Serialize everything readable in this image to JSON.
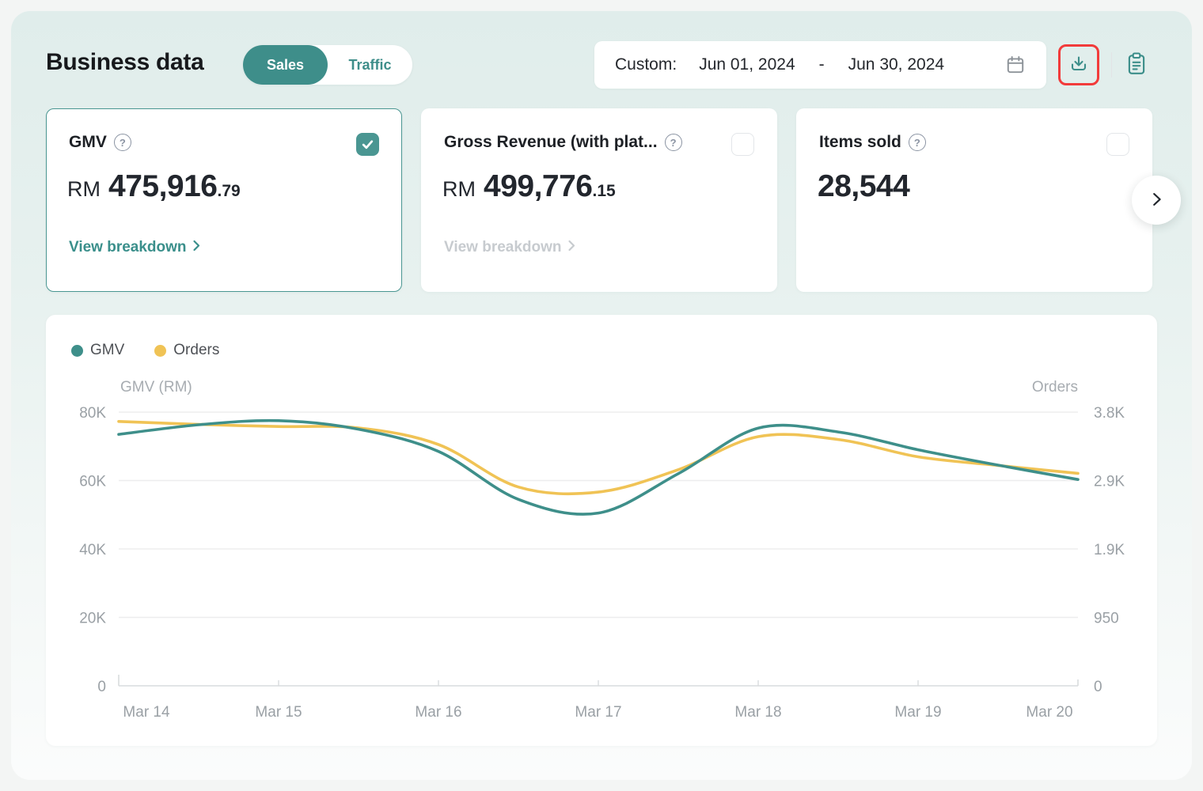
{
  "header": {
    "title": "Business data",
    "tabs": [
      {
        "label": "Sales",
        "active": true
      },
      {
        "label": "Traffic",
        "active": false
      }
    ],
    "date_range": {
      "prefix": "Custom:",
      "start": "Jun 01, 2024",
      "separator": "-",
      "end": "Jun 30, 2024"
    }
  },
  "icons": {
    "help_glyph": "?"
  },
  "cards": [
    {
      "title": "GMV",
      "currency": "RM",
      "value": "475,916",
      "decimal": ".79",
      "link": "View breakdown",
      "checked": true,
      "selected": true
    },
    {
      "title": "Gross Revenue (with plat...",
      "currency": "RM",
      "value": "499,776",
      "decimal": ".15",
      "link": "View breakdown",
      "checked": false,
      "selected": false
    },
    {
      "title": "Items sold",
      "currency": "",
      "value": "28,544",
      "decimal": "",
      "link": "",
      "checked": false,
      "selected": false
    }
  ],
  "chart_data": {
    "type": "line",
    "title": "",
    "legend": [
      {
        "name": "GMV",
        "color": "#3e8f8a"
      },
      {
        "name": "Orders",
        "color": "#f0c355"
      }
    ],
    "left_axis": {
      "title": "GMV (RM)",
      "ticks": [
        "80K",
        "60K",
        "40K",
        "20K",
        "0"
      ],
      "range": [
        0,
        80000
      ]
    },
    "right_axis": {
      "title": "Orders",
      "ticks": [
        "3.8K",
        "2.9K",
        "1.9K",
        "950",
        "0"
      ],
      "range": [
        0,
        3800
      ]
    },
    "categories": [
      "Mar 14",
      "Mar 15",
      "Mar 16",
      "Mar 17",
      "Mar 18",
      "Mar 19",
      "Mar 20"
    ],
    "x_step_days": 0.5,
    "series": [
      {
        "name": "Orders",
        "axis": "right",
        "color": "#f0c355",
        "values": [
          3670,
          3630,
          3600,
          3580,
          3350,
          2760,
          2690,
          3000,
          3460,
          3420,
          3180,
          3060,
          2950
        ]
      },
      {
        "name": "GMV",
        "axis": "left",
        "color": "#3e8f8a",
        "values": [
          73500,
          76300,
          77500,
          75000,
          68500,
          54500,
          50500,
          62000,
          75300,
          74200,
          69000,
          64500,
          60300
        ]
      }
    ],
    "grid": true,
    "legend_position": "top-left"
  },
  "colors": {
    "accent_teal": "#3e8e8a",
    "series_yellow": "#f0c355",
    "highlight_red": "#f23b3b",
    "axis_text": "#9aa0a5",
    "gridline": "#ededee"
  }
}
